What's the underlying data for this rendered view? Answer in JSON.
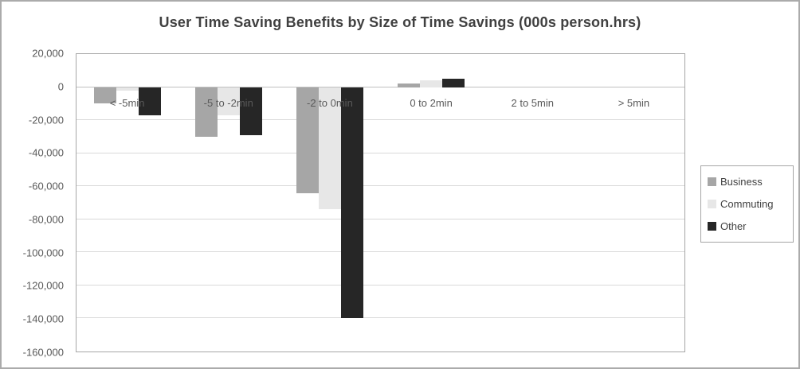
{
  "window": {
    "background": "#ffffff",
    "border_color": "#ababab"
  },
  "chart_data": {
    "type": "bar",
    "title": "User Time Saving Benefits by Size of Time Savings (000s person.hrs)",
    "xlabel": "",
    "ylabel": "",
    "categories": [
      "< -5min",
      "-5 to -2min",
      "-2 to 0min",
      "0 to 2min",
      "2 to 5min",
      "> 5min"
    ],
    "series": [
      {
        "name": "Business",
        "color": "#a6a6a6",
        "values": [
          -10000,
          -30000,
          -64000,
          2000,
          0,
          0
        ]
      },
      {
        "name": "Commuting",
        "color": "#e7e7e7",
        "values": [
          -2000,
          -17000,
          -74000,
          4000,
          0,
          0
        ]
      },
      {
        "name": "Other",
        "color": "#262626",
        "values": [
          -17000,
          -29000,
          -140000,
          5000,
          0,
          0
        ]
      }
    ],
    "ylim": [
      -160000,
      20000
    ],
    "ytick_interval": 20000,
    "yticks": [
      {
        "value": 20000,
        "label": "20,000"
      },
      {
        "value": 0,
        "label": "0"
      },
      {
        "value": -20000,
        "label": "-20,000"
      },
      {
        "value": -40000,
        "label": "-40,000"
      },
      {
        "value": -60000,
        "label": "-60,000"
      },
      {
        "value": -80000,
        "label": "-80,000"
      },
      {
        "value": -100000,
        "label": "-100,000"
      },
      {
        "value": -120000,
        "label": "-120,000"
      },
      {
        "value": -140000,
        "label": "-140,000"
      },
      {
        "value": -160000,
        "label": "-160,000"
      }
    ],
    "grid": true,
    "legend_position": "right",
    "colors": {
      "gridline": "#d9d9d9",
      "zero_line": "#bfbfbf",
      "plot_border": "#a6a6a6",
      "tick_text": "#595959",
      "title_text": "#404040",
      "legend_text": "#404040",
      "legend_border": "#a6a6a6"
    }
  }
}
